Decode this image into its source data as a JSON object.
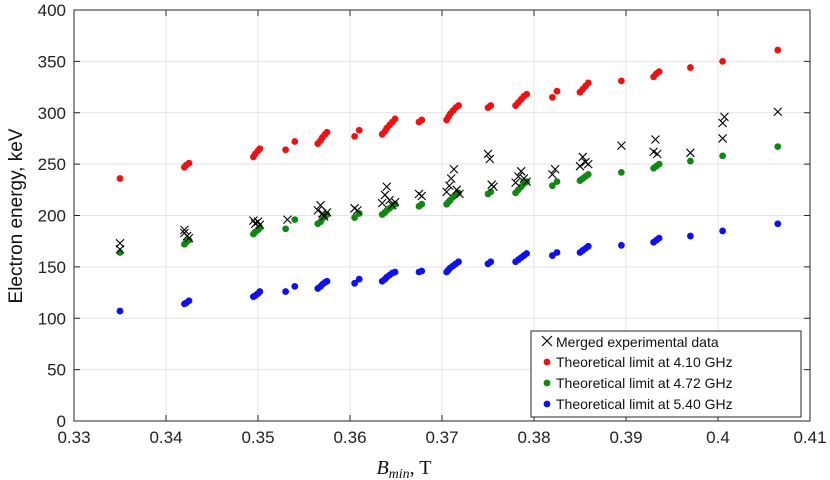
{
  "chart_data": {
    "type": "scatter",
    "title": "",
    "xlabel_main": "B",
    "xlabel_sub": "min",
    "xlabel_unit": ", T",
    "ylabel": "Electron energy, keV",
    "xlim": [
      0.33,
      0.41
    ],
    "ylim": [
      0,
      400
    ],
    "xticks": [
      0.33,
      0.34,
      0.35,
      0.36,
      0.37,
      0.38,
      0.39,
      0.4,
      0.41
    ],
    "xtick_labels": [
      "0.33",
      "0.34",
      "0.35",
      "0.36",
      "0.37",
      "0.38",
      "0.39",
      "0.4",
      "0.41"
    ],
    "yticks": [
      0,
      50,
      100,
      150,
      200,
      250,
      300,
      350,
      400
    ],
    "ytick_labels": [
      "0",
      "50",
      "100",
      "150",
      "200",
      "250",
      "300",
      "350",
      "400"
    ],
    "grid": true,
    "legend_position": "bottom-right",
    "series": [
      {
        "name": "Merged experimental data",
        "marker": "x",
        "color": "#000000",
        "points": [
          [
            0.335,
            173
          ],
          [
            0.335,
            167
          ],
          [
            0.342,
            186
          ],
          [
            0.342,
            183
          ],
          [
            0.3423,
            180
          ],
          [
            0.3425,
            178
          ],
          [
            0.3495,
            195
          ],
          [
            0.3497,
            192
          ],
          [
            0.35,
            194
          ],
          [
            0.3502,
            191
          ],
          [
            0.3532,
            196
          ],
          [
            0.3565,
            205
          ],
          [
            0.3568,
            210
          ],
          [
            0.357,
            202
          ],
          [
            0.3572,
            199
          ],
          [
            0.3575,
            203
          ],
          [
            0.3605,
            207
          ],
          [
            0.3608,
            205
          ],
          [
            0.3635,
            212
          ],
          [
            0.3638,
            220
          ],
          [
            0.364,
            228
          ],
          [
            0.3643,
            215
          ],
          [
            0.3646,
            210
          ],
          [
            0.3649,
            213
          ],
          [
            0.3675,
            221
          ],
          [
            0.3678,
            219
          ],
          [
            0.3705,
            223
          ],
          [
            0.3708,
            229
          ],
          [
            0.371,
            236
          ],
          [
            0.3713,
            245
          ],
          [
            0.3716,
            225
          ],
          [
            0.3719,
            221
          ],
          [
            0.375,
            260
          ],
          [
            0.3752,
            255
          ],
          [
            0.3754,
            230
          ],
          [
            0.3756,
            228
          ],
          [
            0.378,
            232
          ],
          [
            0.3783,
            238
          ],
          [
            0.3786,
            243
          ],
          [
            0.3789,
            236
          ],
          [
            0.3792,
            233
          ],
          [
            0.382,
            240
          ],
          [
            0.3823,
            245
          ],
          [
            0.385,
            248
          ],
          [
            0.3853,
            257
          ],
          [
            0.3856,
            252
          ],
          [
            0.3859,
            250
          ],
          [
            0.3895,
            268
          ],
          [
            0.393,
            262
          ],
          [
            0.3932,
            274
          ],
          [
            0.3934,
            260
          ],
          [
            0.397,
            261
          ],
          [
            0.4005,
            275
          ],
          [
            0.4005,
            290
          ],
          [
            0.4007,
            296
          ],
          [
            0.4065,
            301
          ]
        ]
      },
      {
        "name": "Theoretical limit at 4.10 GHz",
        "marker": "dot",
        "color": "#ee1111",
        "points": [
          [
            0.335,
            236
          ],
          [
            0.342,
            247
          ],
          [
            0.3422,
            249
          ],
          [
            0.3425,
            251
          ],
          [
            0.3495,
            257
          ],
          [
            0.3497,
            260
          ],
          [
            0.35,
            263
          ],
          [
            0.3502,
            265
          ],
          [
            0.353,
            264
          ],
          [
            0.354,
            272
          ],
          [
            0.3565,
            270
          ],
          [
            0.3568,
            273
          ],
          [
            0.357,
            276
          ],
          [
            0.3573,
            279
          ],
          [
            0.3575,
            281
          ],
          [
            0.3605,
            277
          ],
          [
            0.361,
            283
          ],
          [
            0.3635,
            279
          ],
          [
            0.3638,
            282
          ],
          [
            0.364,
            285
          ],
          [
            0.3643,
            288
          ],
          [
            0.3646,
            291
          ],
          [
            0.3649,
            294
          ],
          [
            0.3675,
            291
          ],
          [
            0.3678,
            293
          ],
          [
            0.3705,
            293
          ],
          [
            0.3707,
            296
          ],
          [
            0.3709,
            299
          ],
          [
            0.3712,
            302
          ],
          [
            0.3715,
            305
          ],
          [
            0.3718,
            307
          ],
          [
            0.375,
            305
          ],
          [
            0.3753,
            307
          ],
          [
            0.378,
            307
          ],
          [
            0.3783,
            310
          ],
          [
            0.3786,
            313
          ],
          [
            0.3789,
            316
          ],
          [
            0.3792,
            318
          ],
          [
            0.382,
            315
          ],
          [
            0.3825,
            321
          ],
          [
            0.385,
            320
          ],
          [
            0.3853,
            323
          ],
          [
            0.3856,
            326
          ],
          [
            0.3859,
            329
          ],
          [
            0.3895,
            331
          ],
          [
            0.393,
            335
          ],
          [
            0.3933,
            338
          ],
          [
            0.3936,
            340
          ],
          [
            0.397,
            344
          ],
          [
            0.4005,
            350
          ],
          [
            0.4065,
            361
          ]
        ]
      },
      {
        "name": "Theoretical limit at 4.72 GHz",
        "marker": "dot",
        "color": "#118811",
        "points": [
          [
            0.335,
            164
          ],
          [
            0.342,
            172
          ],
          [
            0.3422,
            174
          ],
          [
            0.3425,
            176
          ],
          [
            0.3495,
            182
          ],
          [
            0.3497,
            184
          ],
          [
            0.35,
            186
          ],
          [
            0.3502,
            188
          ],
          [
            0.353,
            187
          ],
          [
            0.354,
            196
          ],
          [
            0.3565,
            192
          ],
          [
            0.3568,
            194
          ],
          [
            0.357,
            197
          ],
          [
            0.3573,
            199
          ],
          [
            0.3575,
            201
          ],
          [
            0.3605,
            198
          ],
          [
            0.361,
            202
          ],
          [
            0.3635,
            201
          ],
          [
            0.3638,
            203
          ],
          [
            0.364,
            205
          ],
          [
            0.3643,
            207
          ],
          [
            0.3646,
            209
          ],
          [
            0.3649,
            211
          ],
          [
            0.3675,
            209
          ],
          [
            0.3678,
            211
          ],
          [
            0.3705,
            211
          ],
          [
            0.3707,
            213
          ],
          [
            0.3709,
            215
          ],
          [
            0.3712,
            218
          ],
          [
            0.3715,
            220
          ],
          [
            0.3718,
            222
          ],
          [
            0.375,
            221
          ],
          [
            0.3753,
            223
          ],
          [
            0.378,
            222
          ],
          [
            0.3783,
            225
          ],
          [
            0.3786,
            228
          ],
          [
            0.3789,
            231
          ],
          [
            0.3792,
            233
          ],
          [
            0.382,
            229
          ],
          [
            0.3825,
            233
          ],
          [
            0.385,
            234
          ],
          [
            0.3853,
            236
          ],
          [
            0.3856,
            238
          ],
          [
            0.3859,
            240
          ],
          [
            0.3895,
            242
          ],
          [
            0.393,
            246
          ],
          [
            0.3933,
            248
          ],
          [
            0.3936,
            250
          ],
          [
            0.397,
            253
          ],
          [
            0.4005,
            258
          ],
          [
            0.4065,
            267
          ]
        ]
      },
      {
        "name": "Theoretical limit at 5.40 GHz",
        "marker": "dot",
        "color": "#1111ee",
        "points": [
          [
            0.335,
            107
          ],
          [
            0.342,
            114
          ],
          [
            0.3422,
            115
          ],
          [
            0.3425,
            117
          ],
          [
            0.3495,
            121
          ],
          [
            0.3497,
            122
          ],
          [
            0.35,
            124
          ],
          [
            0.3502,
            126
          ],
          [
            0.353,
            126
          ],
          [
            0.354,
            131
          ],
          [
            0.3565,
            129
          ],
          [
            0.3568,
            131
          ],
          [
            0.357,
            133
          ],
          [
            0.3573,
            135
          ],
          [
            0.3575,
            136
          ],
          [
            0.3605,
            134
          ],
          [
            0.361,
            138
          ],
          [
            0.3635,
            136
          ],
          [
            0.3638,
            138
          ],
          [
            0.364,
            140
          ],
          [
            0.3643,
            142
          ],
          [
            0.3646,
            144
          ],
          [
            0.3649,
            145
          ],
          [
            0.3675,
            145
          ],
          [
            0.3678,
            146
          ],
          [
            0.3705,
            145
          ],
          [
            0.3707,
            147
          ],
          [
            0.3709,
            149
          ],
          [
            0.3712,
            151
          ],
          [
            0.3715,
            153
          ],
          [
            0.3718,
            155
          ],
          [
            0.375,
            153
          ],
          [
            0.3753,
            155
          ],
          [
            0.378,
            155
          ],
          [
            0.3783,
            157
          ],
          [
            0.3786,
            159
          ],
          [
            0.3789,
            161
          ],
          [
            0.3792,
            163
          ],
          [
            0.382,
            161
          ],
          [
            0.3825,
            164
          ],
          [
            0.385,
            164
          ],
          [
            0.3853,
            166
          ],
          [
            0.3856,
            168
          ],
          [
            0.3859,
            170
          ],
          [
            0.3895,
            171
          ],
          [
            0.393,
            174
          ],
          [
            0.3933,
            176
          ],
          [
            0.3936,
            178
          ],
          [
            0.397,
            180
          ],
          [
            0.4005,
            185
          ],
          [
            0.4065,
            192
          ]
        ]
      }
    ]
  }
}
